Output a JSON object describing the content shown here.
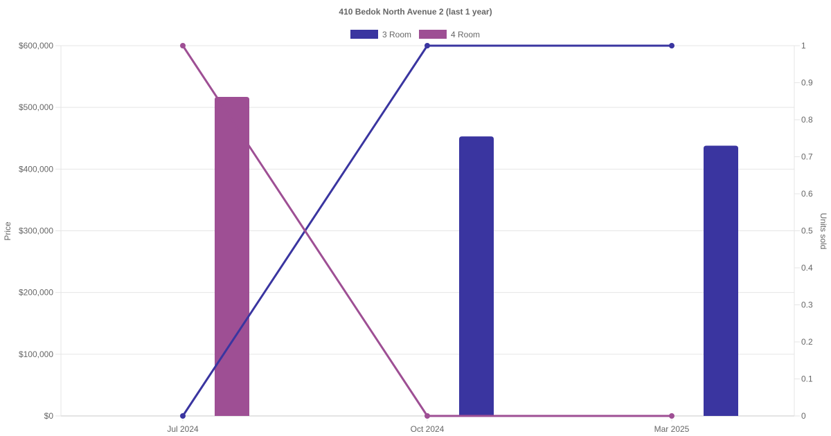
{
  "chart_data": {
    "type": "bar",
    "title": "410 Bedok North Avenue 2 (last 1 year)",
    "categories": [
      "Jul 2024",
      "Oct 2024",
      "Mar 2025"
    ],
    "y_left": {
      "label": "Price",
      "ylim": [
        0,
        600000
      ],
      "ticks": [
        "$0",
        "$100,000",
        "$200,000",
        "$300,000",
        "$400,000",
        "$500,000",
        "$600,000"
      ]
    },
    "y_right": {
      "label": "Units sold",
      "ylim": [
        0,
        1
      ],
      "ticks": [
        "0",
        "0.1",
        "0.2",
        "0.3",
        "0.4",
        "0.5",
        "0.6",
        "0.7",
        "0.8",
        "0.9",
        "1"
      ]
    },
    "legend": {
      "position": "top",
      "entries": [
        "3 Room",
        "4 Room"
      ]
    },
    "grid": true,
    "series": [
      {
        "name": "3 Room",
        "color": "#3a35a0",
        "type": "bar",
        "axis": "left",
        "values": [
          null,
          453000,
          438000
        ]
      },
      {
        "name": "4 Room",
        "color": "#9e4f94",
        "type": "bar",
        "axis": "left",
        "values": [
          517000,
          null,
          null
        ]
      },
      {
        "name": "3 Room",
        "color": "#3a35a0",
        "type": "line",
        "axis": "right",
        "values": [
          0,
          1,
          1
        ]
      },
      {
        "name": "4 Room",
        "color": "#9e4f94",
        "type": "line",
        "axis": "right",
        "values": [
          1,
          0,
          0
        ]
      }
    ]
  }
}
